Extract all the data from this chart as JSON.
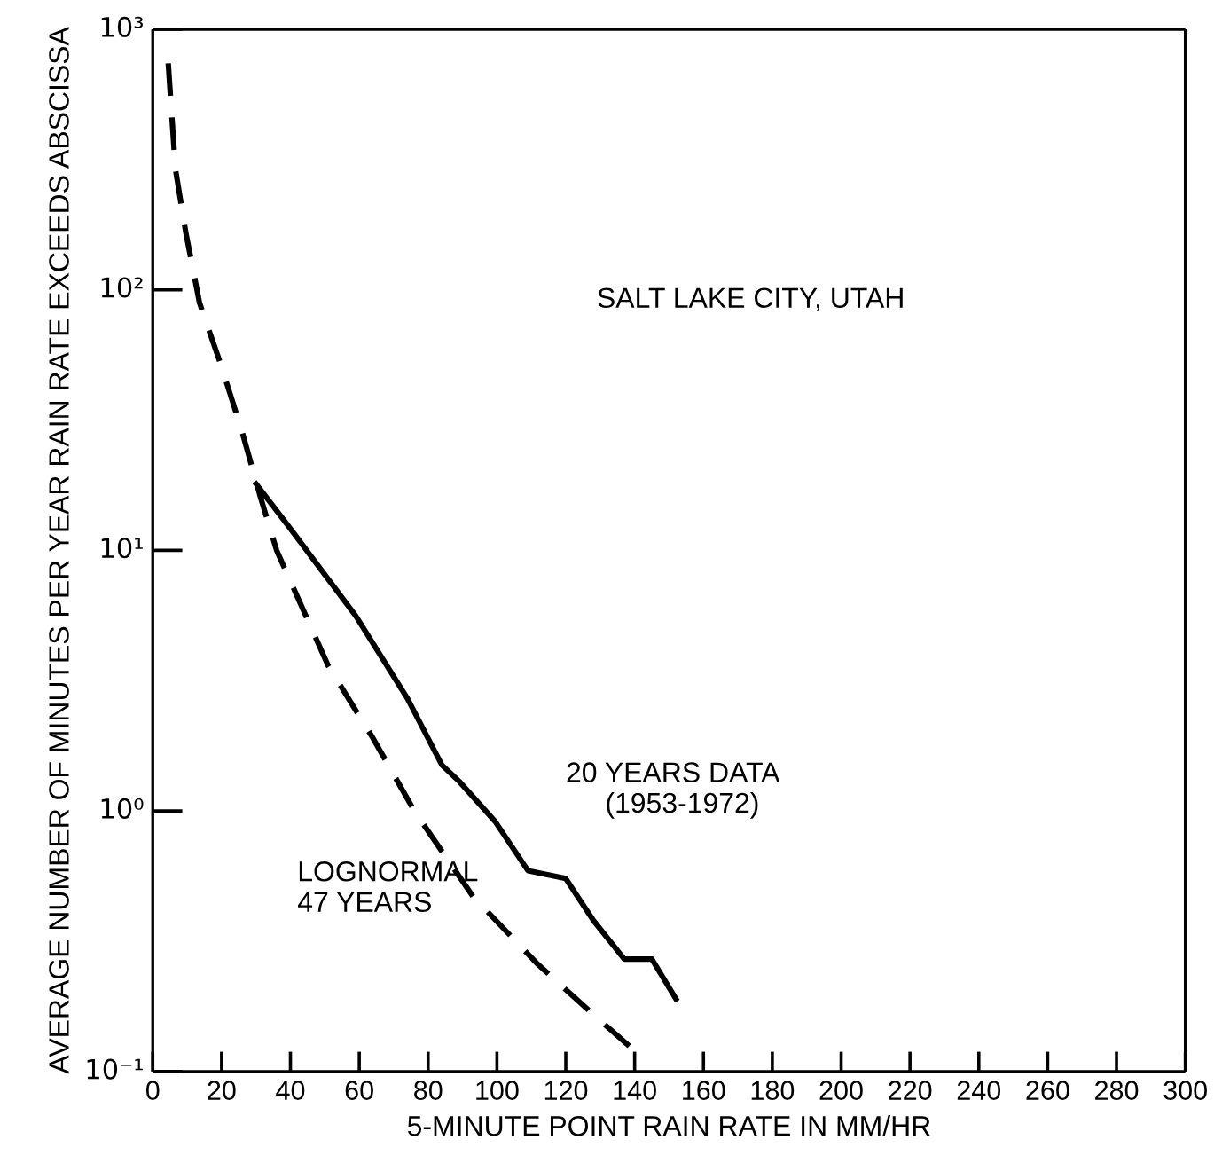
{
  "chart_data": {
    "type": "line",
    "xlabel": "5-MINUTE POINT RAIN RATE IN MM/HR",
    "ylabel": "AVERAGE NUMBER OF MINUTES PER YEAR RAIN RATE EXCEEDS ABSCISSA",
    "log": "y",
    "xlim": [
      0,
      300
    ],
    "xticks": [
      0,
      20,
      40,
      60,
      80,
      100,
      120,
      140,
      160,
      180,
      200,
      220,
      240,
      260,
      280,
      300
    ],
    "ylim": [
      0.1,
      1000
    ],
    "yticks": [
      {
        "value": 0.1,
        "label": "10⁻¹"
      },
      {
        "value": 1,
        "label": "10⁰"
      },
      {
        "value": 10,
        "label": "10¹"
      },
      {
        "value": 100,
        "label": "10²"
      },
      {
        "value": 1000,
        "label": "10³"
      }
    ],
    "grid": false,
    "series": [
      {
        "color": "#000000",
        "line_style": "dashed",
        "x": [
          4.5,
          6.6,
          9.6,
          13.6,
          19.7,
          25.8,
          31.3,
          36,
          51,
          64,
          76,
          93,
          111.6,
          127,
          140
        ],
        "values": [
          740,
          290,
          166,
          89,
          52,
          29,
          16,
          10,
          3.6,
          1.9,
          1.0,
          0.47,
          0.26,
          0.17,
          0.12
        ]
      },
      {
        "color": "#000000",
        "line_style": "solid",
        "x": [
          30,
          39,
          59,
          74,
          84,
          89,
          99.5,
          109,
          120,
          128,
          137,
          145,
          152
        ],
        "values": [
          18,
          12.6,
          5.6,
          2.7,
          1.5,
          1.3,
          0.91,
          0.59,
          0.55,
          0.38,
          0.27,
          0.27,
          0.19
        ]
      }
    ],
    "annotations": [
      "SALT LAKE CITY, UTAH",
      "20 YEARS DATA\n     (1953-1972)",
      "LOGNORMAL\n47 YEARS"
    ]
  }
}
